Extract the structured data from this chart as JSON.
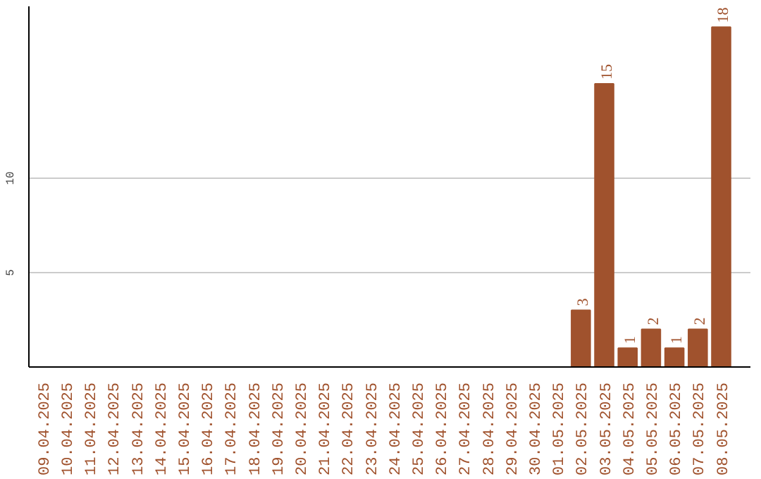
{
  "chart_data": {
    "type": "bar",
    "categories": [
      "09.04.2025",
      "10.04.2025",
      "11.04.2025",
      "12.04.2025",
      "13.04.2025",
      "14.04.2025",
      "15.04.2025",
      "16.04.2025",
      "17.04.2025",
      "18.04.2025",
      "19.04.2025",
      "20.04.2025",
      "21.04.2025",
      "22.04.2025",
      "23.04.2025",
      "24.04.2025",
      "25.04.2025",
      "26.04.2025",
      "27.04.2025",
      "28.04.2025",
      "29.04.2025",
      "30.04.2025",
      "01.05.2025",
      "02.05.2025",
      "03.05.2025",
      "04.05.2025",
      "05.05.2025",
      "06.05.2025",
      "07.05.2025",
      "08.05.2025"
    ],
    "values": [
      0,
      0,
      0,
      0,
      0,
      0,
      0,
      0,
      0,
      0,
      0,
      0,
      0,
      0,
      0,
      0,
      0,
      0,
      0,
      0,
      0,
      0,
      0,
      3,
      15,
      1,
      2,
      1,
      2,
      18
    ],
    "value_labels": [
      null,
      null,
      null,
      null,
      null,
      null,
      null,
      null,
      null,
      null,
      null,
      null,
      null,
      null,
      null,
      null,
      null,
      null,
      null,
      null,
      null,
      null,
      null,
      "3",
      "15",
      "1",
      "2",
      "1",
      "2",
      "18"
    ],
    "color": "#a0522d",
    "ylim": [
      0,
      19.1
    ],
    "yticks": [
      5,
      10
    ],
    "grid": "y"
  }
}
